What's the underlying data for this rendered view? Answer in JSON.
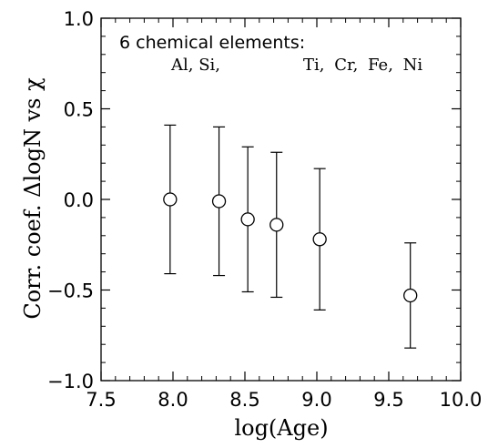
{
  "chart_data": {
    "type": "scatter",
    "title": "",
    "xlabel": "log(Age)",
    "ylabel": "Corr. coef. ΔlogN vs χ",
    "xlim": [
      7.5,
      10.0
    ],
    "ylim": [
      -1.0,
      1.0
    ],
    "xticks": [
      7.5,
      8.0,
      8.5,
      9.0,
      9.5,
      10.0
    ],
    "xtick_labels": [
      "7.5",
      "8.0",
      "8.5",
      "9.0",
      "9.5",
      "10.0"
    ],
    "yticks": [
      -1.0,
      -0.5,
      0.0,
      0.5,
      1.0
    ],
    "ytick_labels": [
      "−1.0",
      "−0.5",
      "0.0",
      "0.5",
      "1.0"
    ],
    "grid": false,
    "marker": "open-circle",
    "annotation": {
      "line1": "6 chemical elements:",
      "elements_left": "Al, Si,",
      "elements_right": "Ti, Cr, Fe, Ni"
    },
    "points": [
      {
        "x": 7.98,
        "y": 0.0,
        "yerr_low": -0.41,
        "yerr_high": 0.41
      },
      {
        "x": 8.32,
        "y": -0.01,
        "yerr_low": -0.42,
        "yerr_high": 0.4
      },
      {
        "x": 8.52,
        "y": -0.11,
        "yerr_low": -0.51,
        "yerr_high": 0.29
      },
      {
        "x": 8.72,
        "y": -0.14,
        "yerr_low": -0.54,
        "yerr_high": 0.26
      },
      {
        "x": 9.02,
        "y": -0.22,
        "yerr_low": -0.61,
        "yerr_high": 0.17
      },
      {
        "x": 9.65,
        "y": -0.53,
        "yerr_low": -0.82,
        "yerr_high": -0.24
      }
    ]
  }
}
